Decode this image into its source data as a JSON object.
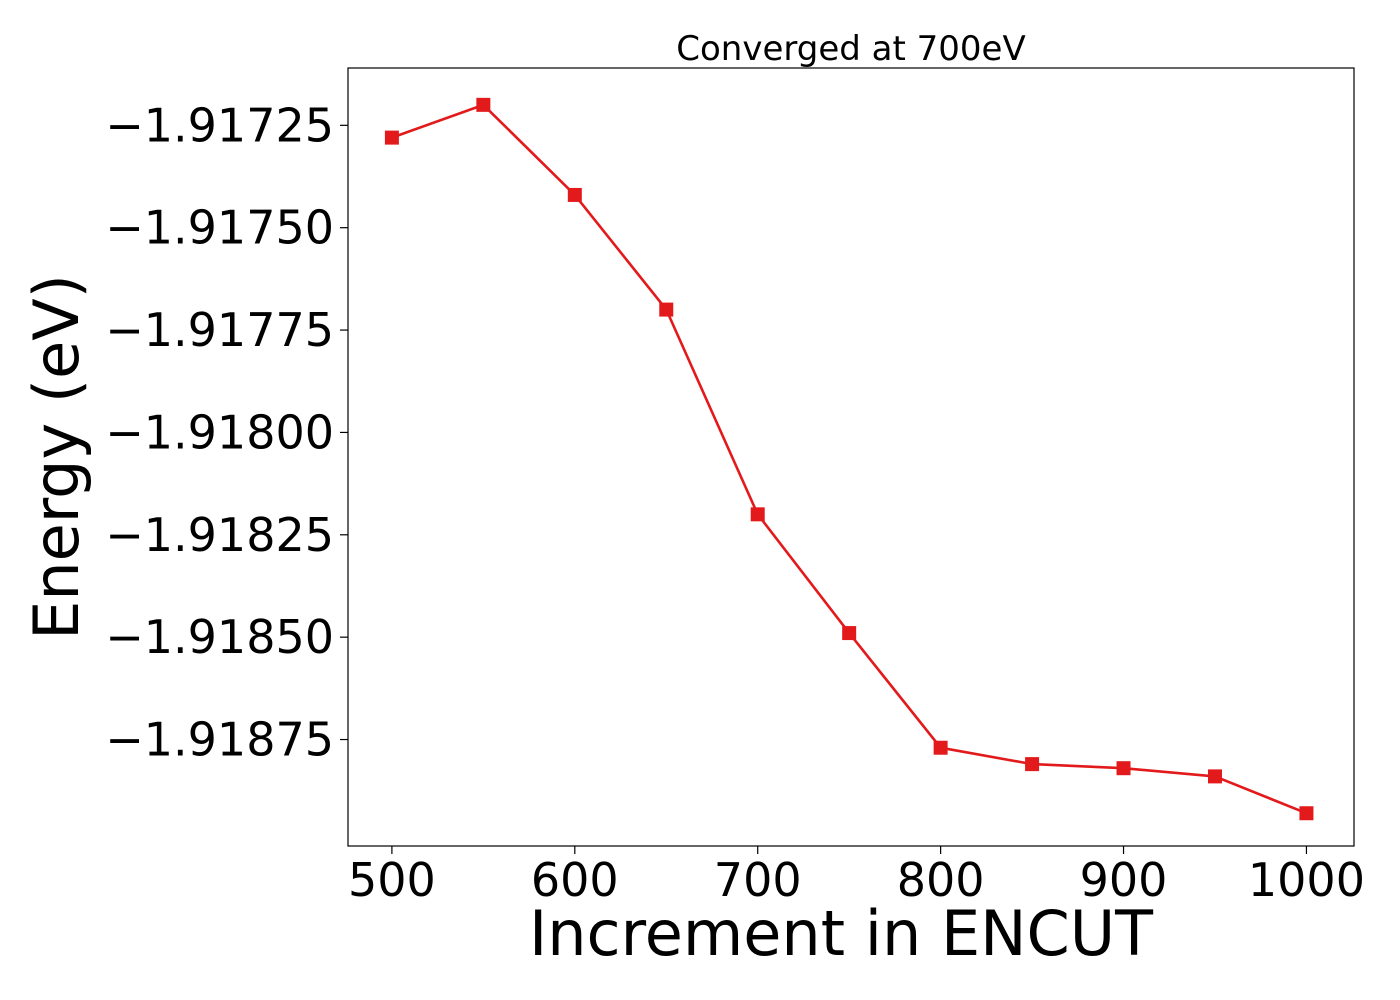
{
  "chart_data": {
    "type": "line",
    "title": "Converged at 700eV",
    "xlabel": "Increment in ENCUT",
    "ylabel": "Energy (eV)",
    "x": [
      500,
      550,
      600,
      650,
      700,
      750,
      800,
      850,
      900,
      950,
      1000
    ],
    "series": [
      {
        "color": "#e31a1c",
        "marker": "square",
        "values": [
          -1.91728,
          -1.9172,
          -1.91742,
          -1.9177,
          -1.9182,
          -1.91849,
          -1.91877,
          -1.91881,
          -1.91882,
          -1.91884,
          -1.91893
        ]
      }
    ],
    "xlim": [
      476,
      1026
    ],
    "ylim": [
      -1.91901,
      -1.91711
    ],
    "xticks": [
      500,
      600,
      700,
      800,
      900,
      1000
    ],
    "xtick_labels": [
      "500",
      "600",
      "700",
      "800",
      "900",
      "1000"
    ],
    "yticks": [
      -1.91725,
      -1.9175,
      -1.91775,
      -1.918,
      -1.91825,
      -1.9185,
      -1.91875
    ],
    "ytick_labels": [
      "−1.91725",
      "−1.91750",
      "−1.91775",
      "−1.91800",
      "−1.91825",
      "−1.91850",
      "−1.91875"
    ],
    "grid": false,
    "legend": "none"
  }
}
